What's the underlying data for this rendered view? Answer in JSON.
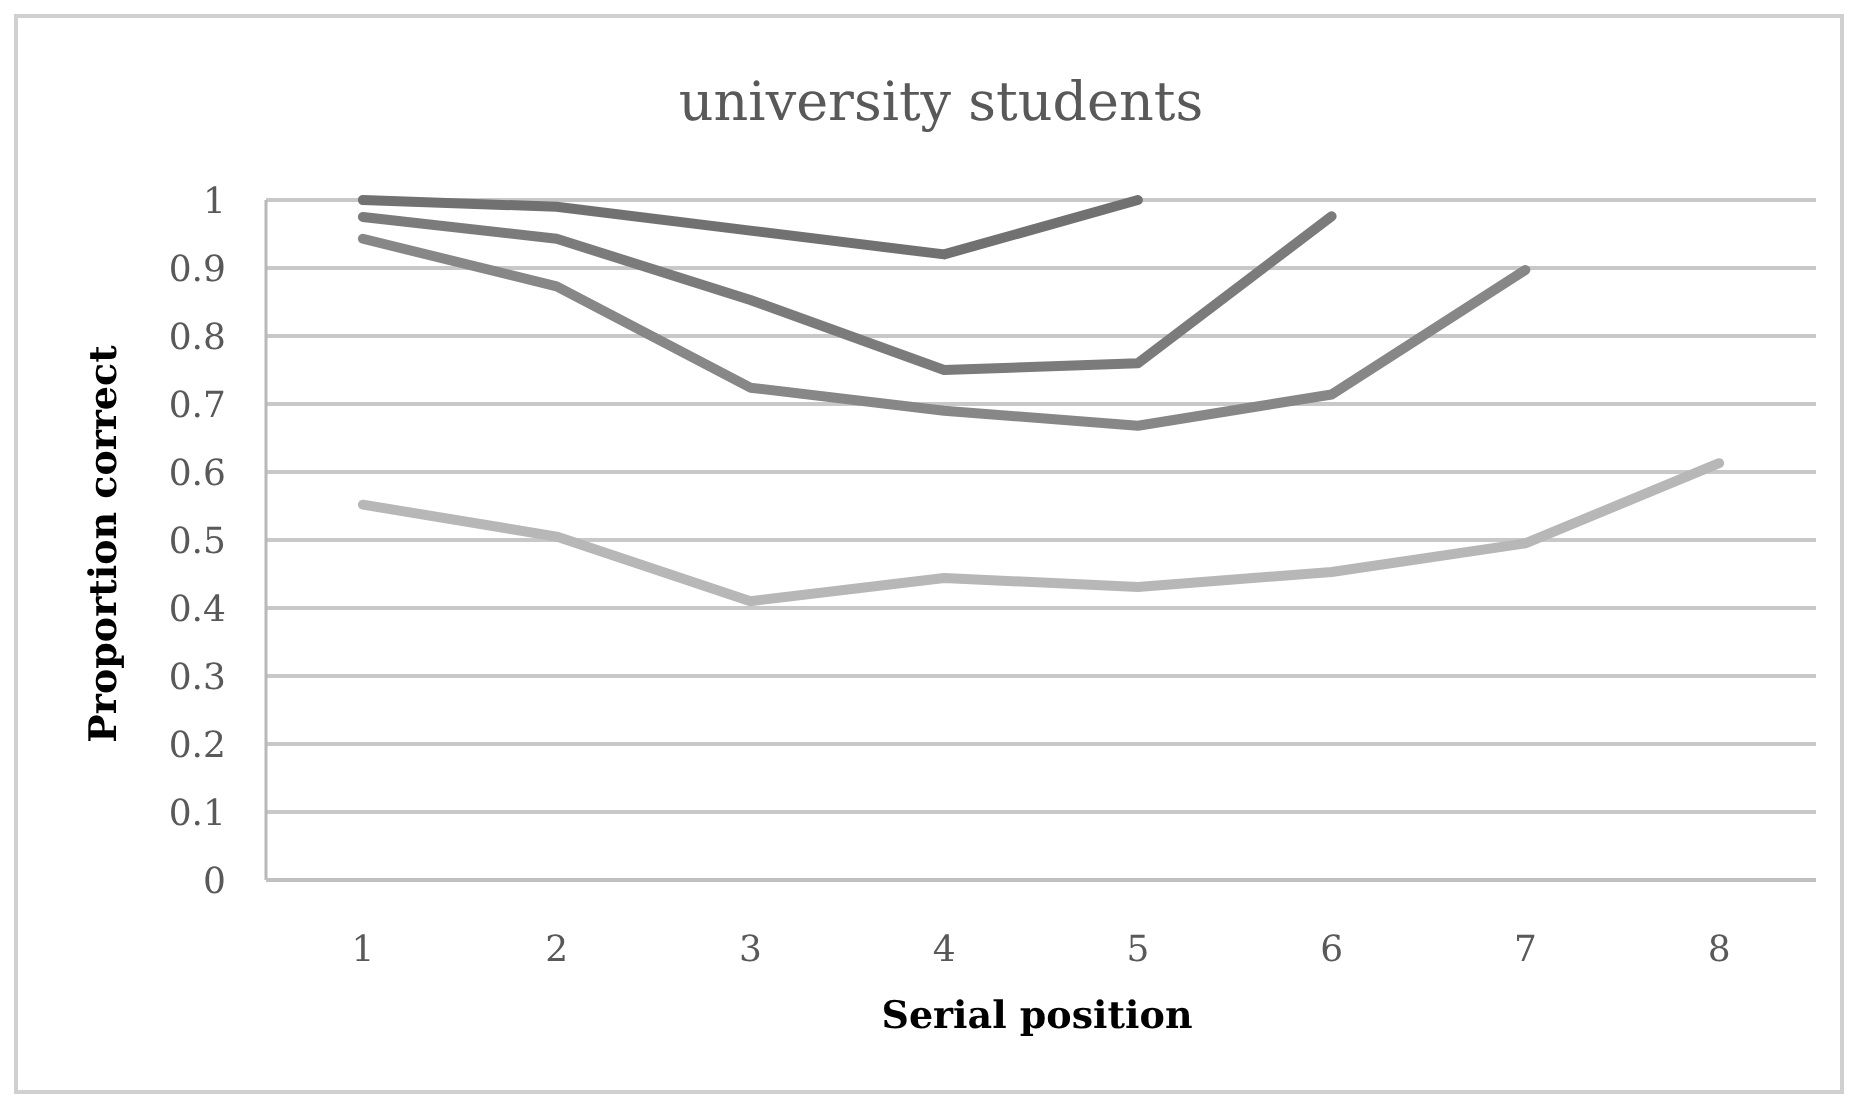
{
  "chart_data": {
    "type": "line",
    "title": "university students",
    "xlabel": "Serial position",
    "ylabel": "Proportion correct",
    "categories": [
      "1",
      "2",
      "3",
      "4",
      "5",
      "6",
      "7",
      "8"
    ],
    "series": [
      {
        "color": "#717171",
        "values": [
          1.0,
          0.99,
          0.955,
          0.92,
          1.0,
          null,
          null,
          null
        ]
      },
      {
        "color": "#7b7b7b",
        "values": [
          0.975,
          0.943,
          0.853,
          0.75,
          0.76,
          0.976,
          null,
          null
        ]
      },
      {
        "color": "#878787",
        "values": [
          0.943,
          0.873,
          0.724,
          0.69,
          0.668,
          0.714,
          0.897,
          null
        ]
      },
      {
        "color": "#b7b7b7",
        "values": [
          0.552,
          0.505,
          0.41,
          0.444,
          0.431,
          0.453,
          0.495,
          0.613
        ]
      }
    ],
    "ylim": [
      0,
      1
    ],
    "yticks": [
      0,
      0.1,
      0.2,
      0.3,
      0.4,
      0.5,
      0.6,
      0.7,
      0.8,
      0.9,
      1
    ],
    "grid": "y"
  }
}
